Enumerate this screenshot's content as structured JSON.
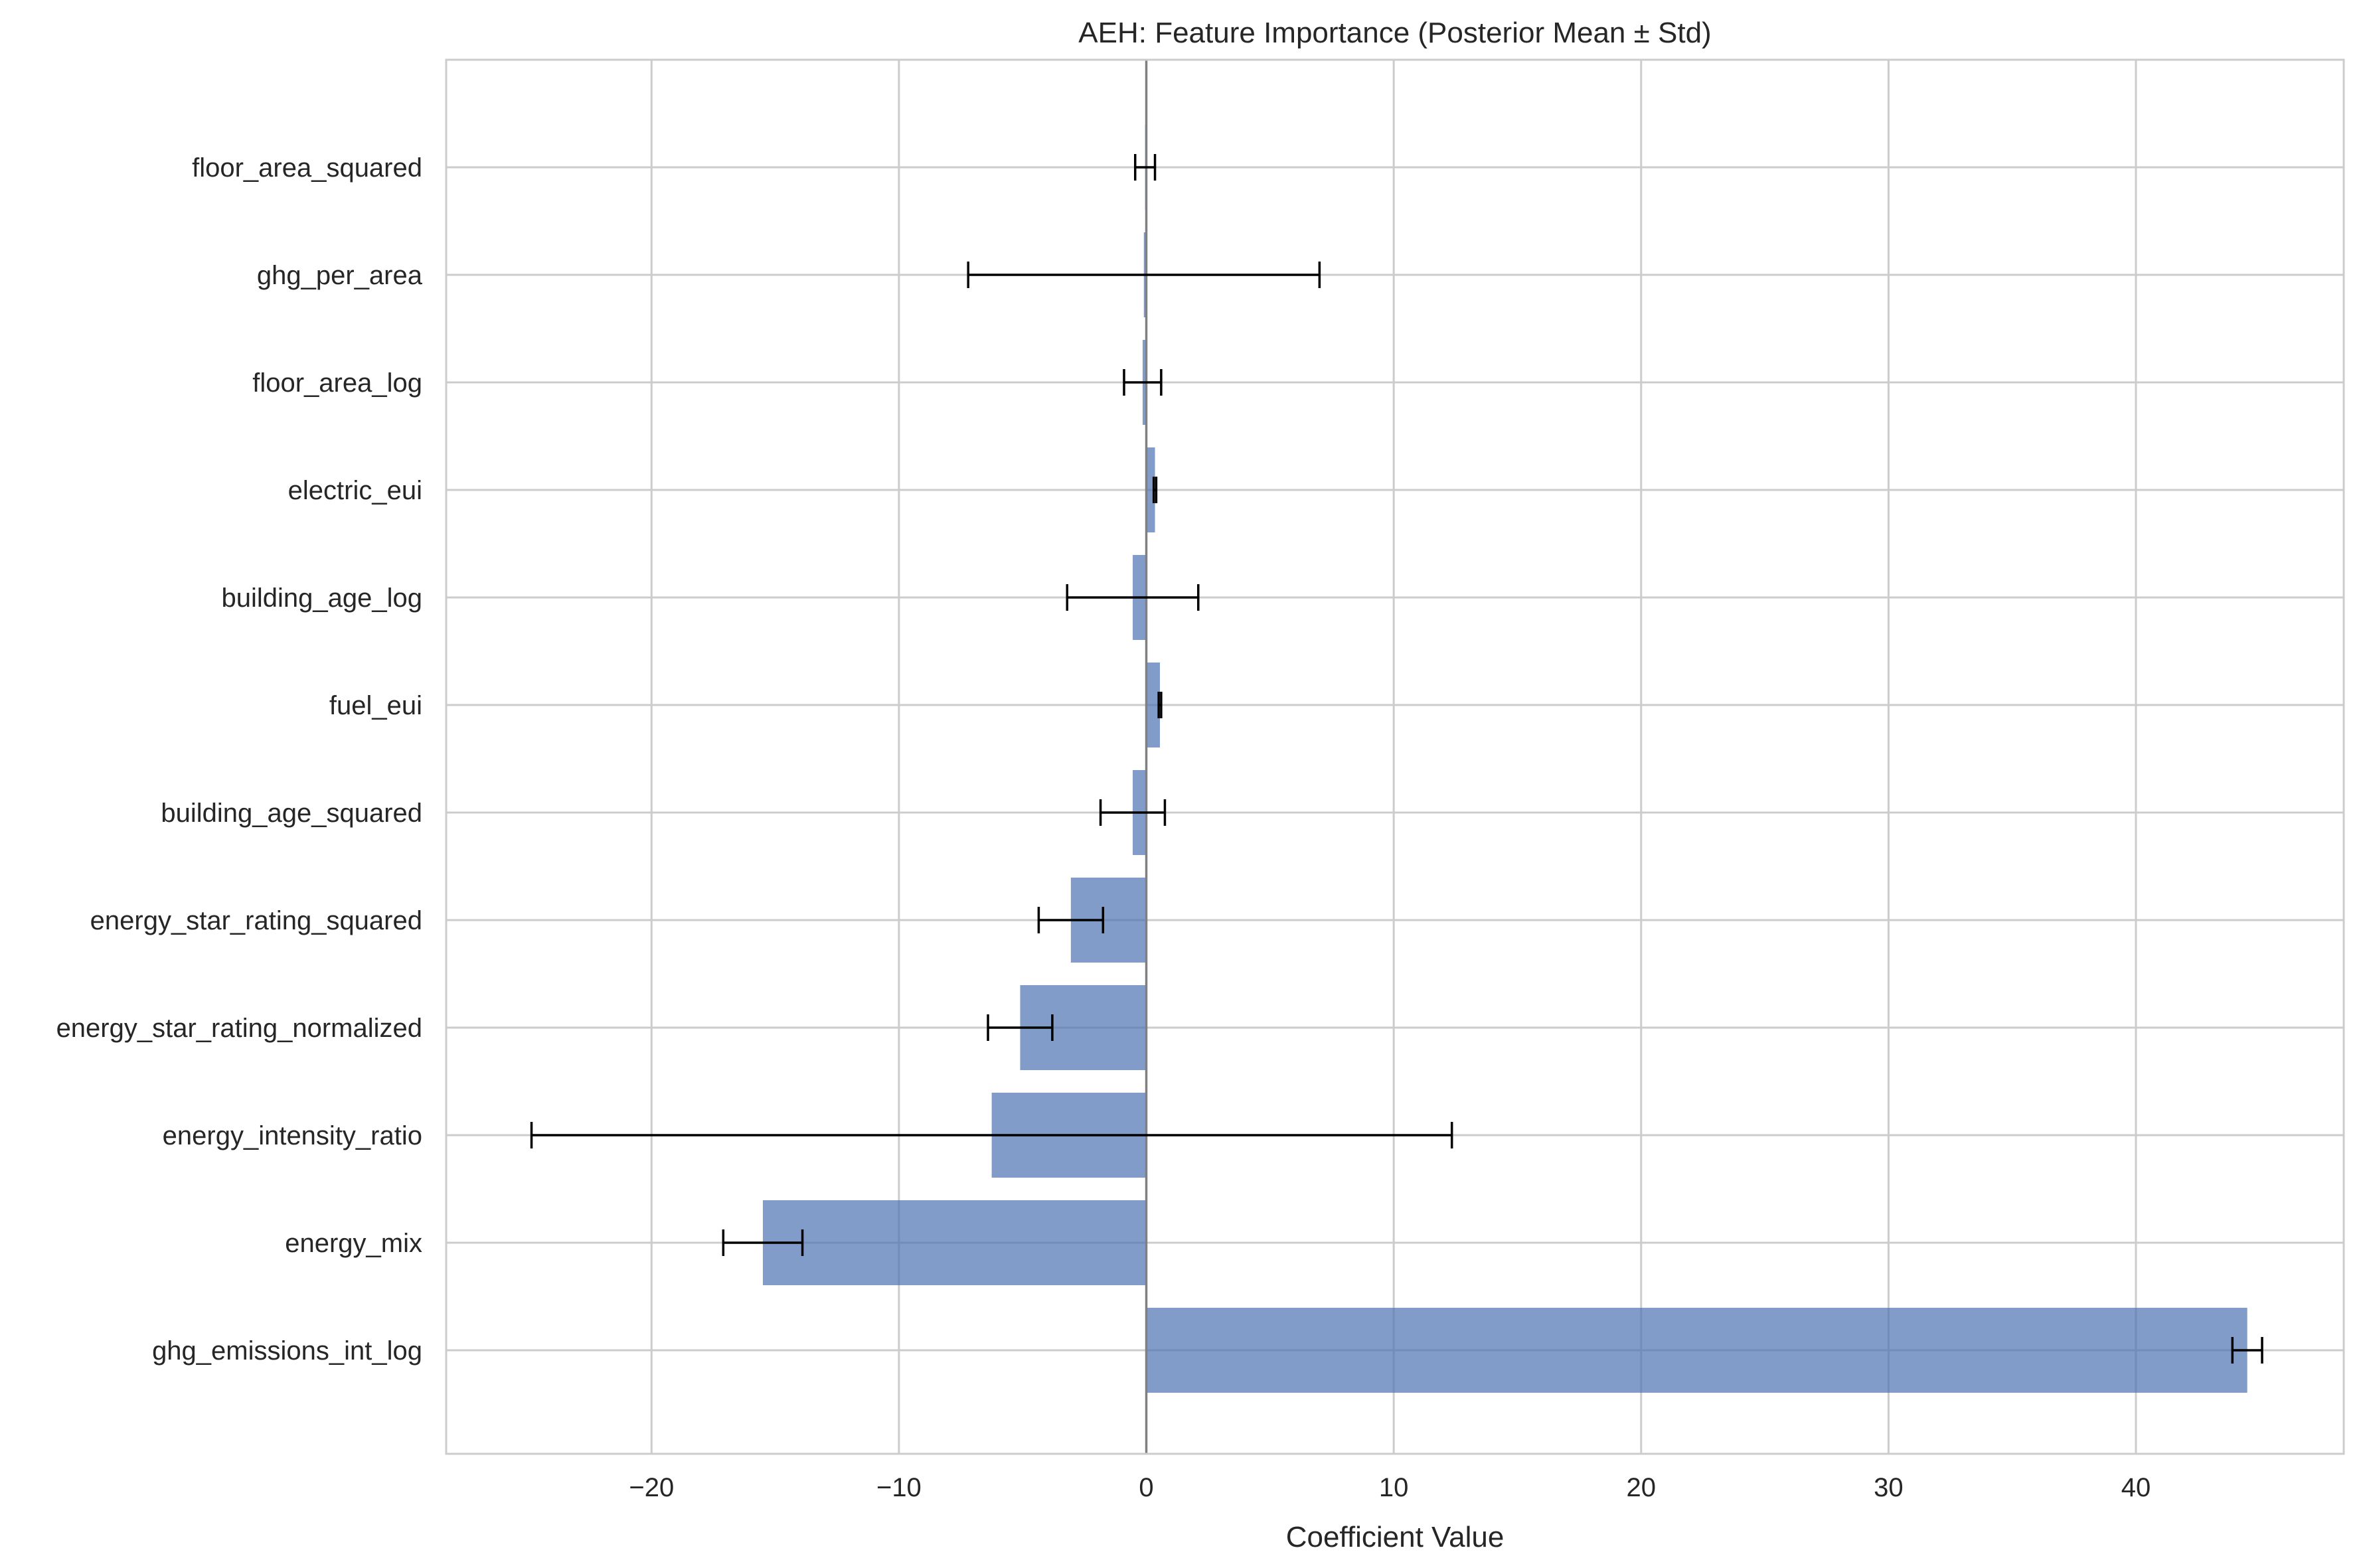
{
  "chart_data": {
    "type": "bar",
    "orientation": "horizontal",
    "title": "AEH: Feature Importance (Posterior Mean ± Std)",
    "xlabel": "Coefficient Value",
    "ylabel": "",
    "xlim": [
      -28.3,
      48.4
    ],
    "xticks": [
      -20,
      -10,
      0,
      10,
      20,
      30,
      40
    ],
    "xtick_labels": [
      "−20",
      "−10",
      "0",
      "10",
      "20",
      "30",
      "40"
    ],
    "grid": true,
    "bar_color": "#4c72b0",
    "categories": [
      "floor_area_squared",
      "ghg_per_area",
      "floor_area_log",
      "electric_eui",
      "building_age_log",
      "fuel_eui",
      "building_age_squared",
      "energy_star_rating_squared",
      "energy_star_rating_normalized",
      "energy_intensity_ratio",
      "energy_mix",
      "ghg_emissions_int_log"
    ],
    "values": [
      -0.05,
      -0.1,
      -0.15,
      0.35,
      -0.55,
      0.55,
      -0.55,
      -3.05,
      -5.1,
      -6.25,
      -15.5,
      44.5
    ],
    "errors": [
      0.4,
      7.1,
      0.75,
      0.05,
      2.65,
      0.05,
      1.3,
      1.3,
      1.3,
      18.6,
      1.6,
      0.6
    ]
  }
}
